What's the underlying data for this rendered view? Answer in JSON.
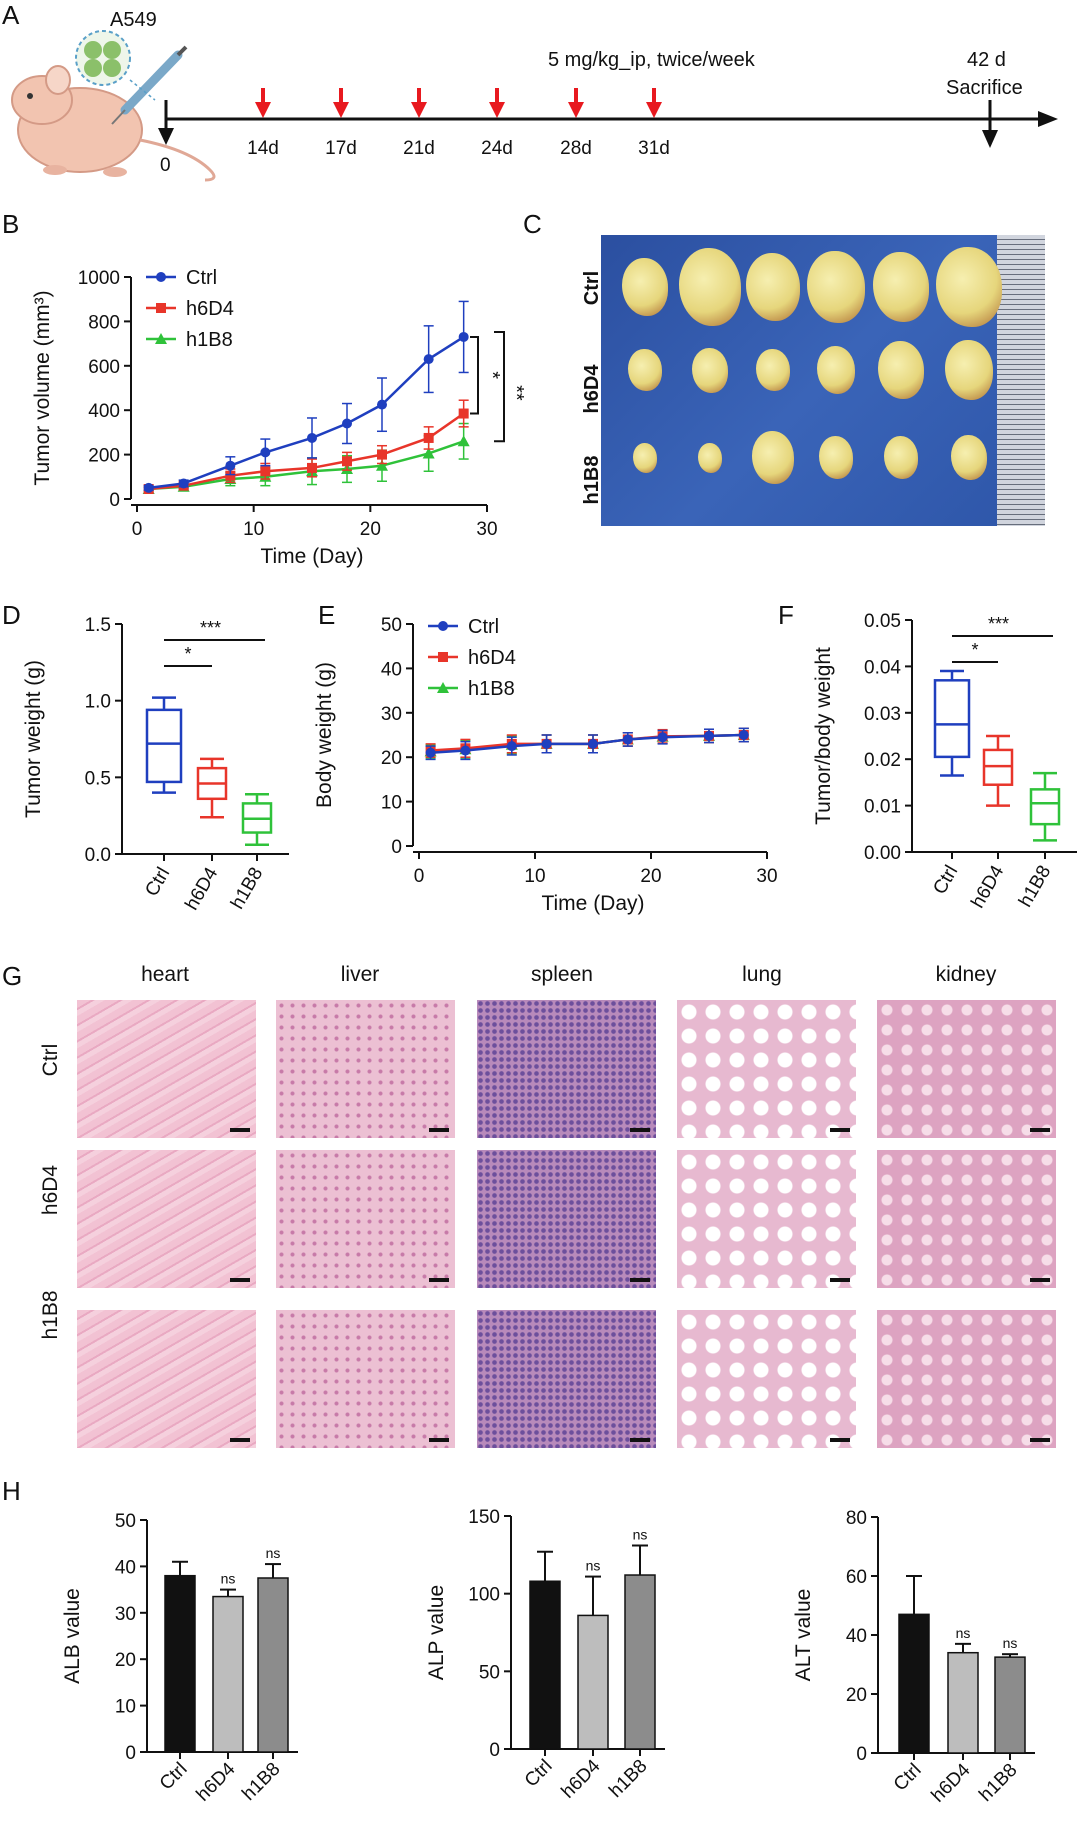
{
  "figure": {
    "panel_letters": [
      "A",
      "B",
      "C",
      "D",
      "E",
      "F",
      "G",
      "H"
    ]
  },
  "panelA": {
    "cell_line": "A549",
    "dose_text": "5 mg/kg_ip, twice/week",
    "start_label": "0",
    "end_day": "42 d",
    "end_event": "Sacrifice",
    "injection_days": [
      "14d",
      "17d",
      "21d",
      "24d",
      "28d",
      "31d"
    ],
    "arrow_color": "#e8191f"
  },
  "colors": {
    "Ctrl": "#1f3fbf",
    "h6D4": "#e8352a",
    "h1B8": "#2fc23a",
    "bar_ctrl": "#111111",
    "bar_h6D4": "#bdbdbd",
    "bar_h1B8": "#8c8c8c"
  },
  "chart_data": [
    {
      "id": "B",
      "type": "line",
      "xlabel": "Time (Day)",
      "ylabel": "Tumor volume (mm³)",
      "xlim": [
        0,
        30
      ],
      "ylim": [
        0,
        1000
      ],
      "xticks": [
        0,
        10,
        20,
        30
      ],
      "yticks": [
        0,
        200,
        400,
        600,
        800,
        1000
      ],
      "x": [
        1,
        4,
        8,
        11,
        15,
        18,
        21,
        25,
        28
      ],
      "series": [
        {
          "name": "Ctrl",
          "values": [
            50,
            70,
            150,
            210,
            275,
            340,
            425,
            630,
            730
          ],
          "err": [
            10,
            15,
            40,
            60,
            90,
            90,
            120,
            150,
            160
          ]
        },
        {
          "name": "h6D4",
          "values": [
            45,
            60,
            105,
            125,
            140,
            170,
            200,
            275,
            385
          ],
          "err": [
            8,
            10,
            30,
            35,
            40,
            40,
            40,
            50,
            60
          ]
        },
        {
          "name": "h1B8",
          "values": [
            45,
            55,
            90,
            100,
            125,
            135,
            150,
            205,
            260
          ],
          "err": [
            8,
            10,
            30,
            40,
            60,
            60,
            70,
            80,
            80
          ]
        }
      ],
      "annotations": [
        "*",
        "**"
      ]
    },
    {
      "id": "D",
      "type": "box",
      "ylabel": "Tumor weight (g)",
      "ylim": [
        0,
        1.5
      ],
      "yticks": [
        "0.0",
        "0.5",
        "1.0",
        "1.5"
      ],
      "categories": [
        "Ctrl",
        "h6D4",
        "h1B8"
      ],
      "boxes": [
        {
          "min": 0.4,
          "q1": 0.47,
          "median": 0.72,
          "q3": 0.94,
          "max": 1.02
        },
        {
          "min": 0.24,
          "q1": 0.36,
          "median": 0.46,
          "q3": 0.56,
          "max": 0.62
        },
        {
          "min": 0.06,
          "q1": 0.14,
          "median": 0.23,
          "q3": 0.33,
          "max": 0.39
        }
      ],
      "annotations": [
        "*",
        "***"
      ]
    },
    {
      "id": "E",
      "type": "line",
      "xlabel": "Time (Day)",
      "ylabel": "Body weight (g)",
      "xlim": [
        0,
        30
      ],
      "ylim": [
        0,
        50
      ],
      "xticks": [
        0,
        10,
        20,
        30
      ],
      "yticks": [
        0,
        10,
        20,
        30,
        40,
        50
      ],
      "x": [
        1,
        4,
        8,
        11,
        15,
        18,
        21,
        25,
        28
      ],
      "series": [
        {
          "name": "Ctrl",
          "values": [
            21,
            21.5,
            22.5,
            23,
            23,
            24,
            24.5,
            24.8,
            25
          ],
          "err": [
            1.5,
            2,
            2,
            2,
            2,
            1.5,
            1.5,
            1.5,
            1.5
          ]
        },
        {
          "name": "h6D4",
          "values": [
            21.5,
            22,
            23,
            23,
            23,
            24,
            24.7,
            24.8,
            25
          ],
          "err": [
            1.5,
            2,
            2,
            2,
            2,
            1.5,
            1.5,
            1.5,
            1.5
          ]
        },
        {
          "name": "h1B8",
          "values": [
            21.3,
            21.8,
            22.8,
            23,
            23,
            24,
            24.6,
            24.8,
            25
          ],
          "err": [
            1.5,
            2,
            2,
            2,
            2,
            1.5,
            1.5,
            1.5,
            1.5
          ]
        }
      ]
    },
    {
      "id": "F",
      "type": "box",
      "ylabel": "Tumor/body weight",
      "ylim": [
        0,
        0.05
      ],
      "yticks": [
        "0.00",
        "0.01",
        "0.02",
        "0.03",
        "0.04",
        "0.05"
      ],
      "categories": [
        "Ctrl",
        "h6D4",
        "h1B8"
      ],
      "boxes": [
        {
          "min": 0.0165,
          "q1": 0.0205,
          "median": 0.0275,
          "q3": 0.037,
          "max": 0.039
        },
        {
          "min": 0.01,
          "q1": 0.0145,
          "median": 0.0185,
          "q3": 0.022,
          "max": 0.025
        },
        {
          "min": 0.0025,
          "q1": 0.006,
          "median": 0.0105,
          "q3": 0.0135,
          "max": 0.017
        }
      ],
      "annotations": [
        "*",
        "***"
      ]
    },
    {
      "id": "H1",
      "type": "bar",
      "ylabel": "ALB value",
      "ylim": [
        0,
        50
      ],
      "yticks": [
        0,
        10,
        20,
        30,
        40,
        50
      ],
      "categories": [
        "Ctrl",
        "h6D4",
        "h1B8"
      ],
      "values": [
        38,
        33.5,
        37.5
      ],
      "err": [
        3,
        1.5,
        3
      ],
      "sig": [
        "",
        "ns",
        "ns"
      ]
    },
    {
      "id": "H2",
      "type": "bar",
      "ylabel": "ALP value",
      "ylim": [
        0,
        150
      ],
      "yticks": [
        0,
        50,
        100,
        150
      ],
      "categories": [
        "Ctrl",
        "h6D4",
        "h1B8"
      ],
      "values": [
        108,
        86,
        112
      ],
      "err": [
        19,
        25,
        19
      ],
      "sig": [
        "",
        "ns",
        "ns"
      ]
    },
    {
      "id": "H3",
      "type": "bar",
      "ylabel": "ALT value",
      "ylim": [
        0,
        80
      ],
      "yticks": [
        0,
        20,
        40,
        60,
        80
      ],
      "categories": [
        "Ctrl",
        "h6D4",
        "h1B8"
      ],
      "values": [
        47,
        34,
        32.5
      ],
      "err": [
        13,
        3,
        1
      ],
      "sig": [
        "",
        "ns",
        "ns"
      ]
    }
  ],
  "panelC": {
    "rows": [
      "Ctrl",
      "h6D4",
      "h1B8"
    ]
  },
  "panelG": {
    "tissues": [
      "heart",
      "liver",
      "spleen",
      "lung",
      "kidney"
    ],
    "rows": [
      "Ctrl",
      "h6D4",
      "h1B8"
    ]
  }
}
